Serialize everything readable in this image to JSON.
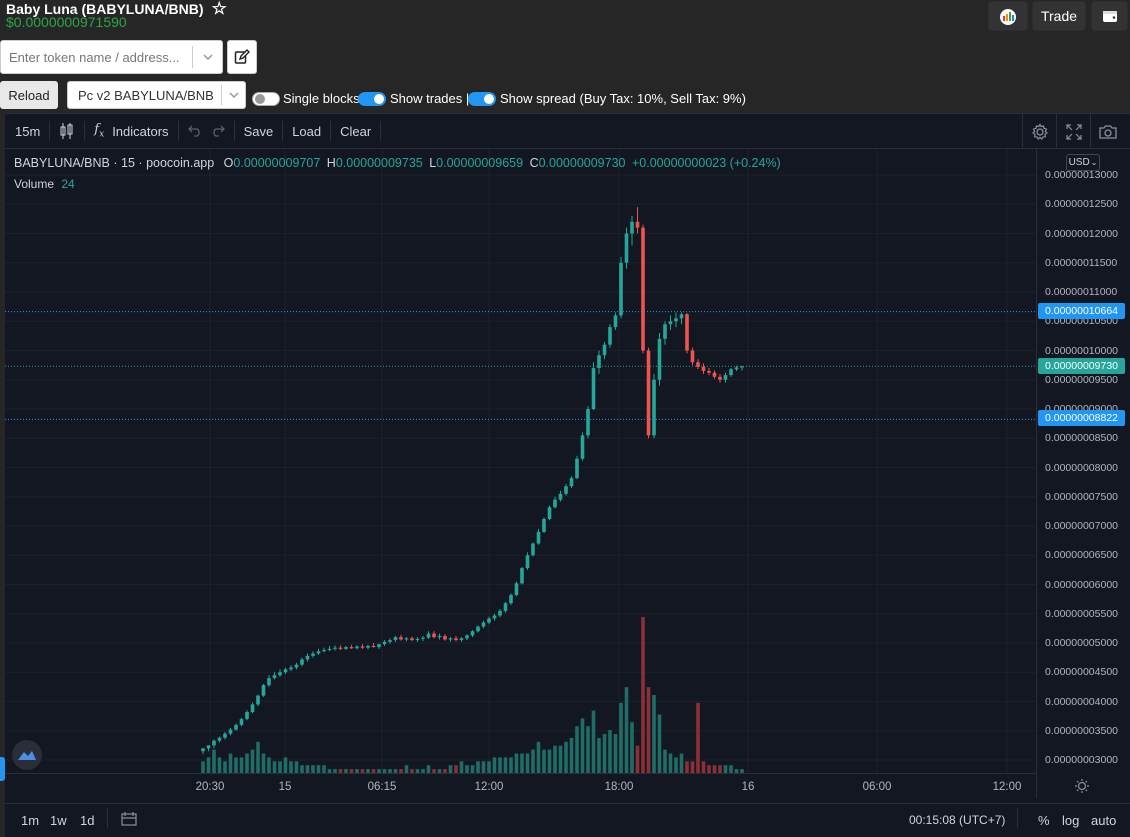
{
  "header": {
    "token_title": "Baby Luna (BABYLUNA/BNB)",
    "token_price": "$0.0000000971590",
    "trade_label": "Trade",
    "search_placeholder": "Enter token name / address..."
  },
  "controls": {
    "reload_label": "Reload",
    "pair_selected": "Pc v2 BABYLUNA/BNB",
    "single_blocks_label": "Single blocks",
    "single_blocks_on": false,
    "show_trades_label": "Show trades |",
    "show_trades_on": true,
    "show_spread_label": "Show spread (Buy Tax: 10%, Sell Tax: 9%)",
    "show_spread_on": true
  },
  "toolbar": {
    "interval": "15m",
    "indicators_label": "Indicators",
    "save_label": "Save",
    "load_label": "Load",
    "clear_label": "Clear"
  },
  "legend": {
    "symbol": "BABYLUNA/BNB",
    "sep1": "·",
    "resolution": "15",
    "sep2": "·",
    "source": "poocoin.app",
    "o_key": "O",
    "o_val": "0.00000009707",
    "h_key": "H",
    "h_val": "0.00000009735",
    "l_key": "L",
    "l_val": "0.00000009659",
    "c_key": "C",
    "c_val": "0.00000009730",
    "change": "+0.00000000023 (+0.24%)",
    "volume_label": "Volume",
    "volume_val": "24"
  },
  "axis": {
    "currency": "USD",
    "y_ticks": [
      "0.00000013000",
      "0.00000012500",
      "0.00000012000",
      "0.00000011500",
      "0.00000011000",
      "0.00000010500",
      "0.00000010000",
      "0.00000009500",
      "0.00000009000",
      "0.00000008500",
      "0.00000008000",
      "0.00000007500",
      "0.00000007000",
      "0.00000006500",
      "0.00000006000",
      "0.00000005500",
      "0.00000005000",
      "0.00000004500",
      "0.00000004000",
      "0.00000003500",
      "0.00000003000"
    ],
    "x_ticks": [
      "20:30",
      "15",
      "06:15",
      "12:00",
      "18:00",
      "16",
      "06:00",
      "12:00"
    ],
    "tag_upper": "0.00000010664",
    "tag_last": "0.00000009730",
    "tag_lower": "0.00000008822",
    "colors": {
      "up": "#26a69a",
      "down": "#ef5350",
      "upper_line": "#2196f3",
      "last_line": "#26a69a"
    }
  },
  "bottom": {
    "range_1m": "1m",
    "range_1w": "1w",
    "range_1d": "1d",
    "clock": "00:15:08 (UTC+7)",
    "pct": "%",
    "log": "log",
    "auto": "auto"
  },
  "chart_data": {
    "type": "candlestick",
    "title": "BABYLUNA/BNB · 15 · poocoin.app",
    "y_scale": "price USD",
    "ylim": [
      2.9e-08,
      1.31e-07
    ],
    "series": [
      {
        "name": "price",
        "values": [
          [
            3.15,
            3.2,
            3.1,
            3.2
          ],
          [
            3.2,
            3.25,
            3.15,
            3.25
          ],
          [
            3.25,
            3.35,
            3.2,
            3.33
          ],
          [
            3.33,
            3.4,
            3.3,
            3.38
          ],
          [
            3.38,
            3.48,
            3.35,
            3.45
          ],
          [
            3.45,
            3.55,
            3.42,
            3.52
          ],
          [
            3.52,
            3.62,
            3.5,
            3.6
          ],
          [
            3.6,
            3.72,
            3.58,
            3.7
          ],
          [
            3.7,
            3.85,
            3.68,
            3.82
          ],
          [
            3.82,
            3.98,
            3.8,
            3.95
          ],
          [
            3.95,
            4.12,
            3.92,
            4.1
          ],
          [
            4.1,
            4.3,
            4.08,
            4.28
          ],
          [
            4.28,
            4.45,
            4.25,
            4.4
          ],
          [
            4.4,
            4.5,
            4.38,
            4.45
          ],
          [
            4.45,
            4.55,
            4.42,
            4.5
          ],
          [
            4.5,
            4.58,
            4.47,
            4.55
          ],
          [
            4.55,
            4.62,
            4.52,
            4.58
          ],
          [
            4.58,
            4.66,
            4.55,
            4.63
          ],
          [
            4.63,
            4.75,
            4.6,
            4.72
          ],
          [
            4.72,
            4.82,
            4.68,
            4.78
          ],
          [
            4.78,
            4.86,
            4.75,
            4.82
          ],
          [
            4.82,
            4.9,
            4.8,
            4.86
          ],
          [
            4.86,
            4.92,
            4.84,
            4.88
          ],
          [
            4.88,
            4.95,
            4.86,
            4.9
          ],
          [
            4.9,
            4.96,
            4.87,
            4.92
          ],
          [
            4.92,
            4.96,
            4.88,
            4.9
          ],
          [
            4.9,
            4.95,
            4.88,
            4.93
          ],
          [
            4.93,
            4.97,
            4.9,
            4.91
          ],
          [
            4.91,
            4.96,
            4.89,
            4.94
          ],
          [
            4.94,
            4.98,
            4.9,
            4.92
          ],
          [
            4.92,
            4.97,
            4.89,
            4.95
          ],
          [
            4.95,
            5.0,
            4.92,
            4.93
          ],
          [
            4.93,
            4.99,
            4.9,
            4.98
          ],
          [
            4.98,
            5.05,
            4.95,
            5.02
          ],
          [
            5.02,
            5.08,
            4.99,
            5.05
          ],
          [
            5.05,
            5.12,
            5.02,
            5.1
          ],
          [
            5.1,
            5.14,
            5.04,
            5.06
          ],
          [
            5.06,
            5.1,
            5.03,
            5.08
          ],
          [
            5.08,
            5.11,
            5.03,
            5.05
          ],
          [
            5.05,
            5.1,
            5.02,
            5.07
          ],
          [
            5.07,
            5.12,
            5.03,
            5.09
          ],
          [
            5.09,
            5.2,
            5.07,
            5.16
          ],
          [
            5.16,
            5.2,
            5.08,
            5.1
          ],
          [
            5.1,
            5.16,
            5.06,
            5.12
          ],
          [
            5.12,
            5.15,
            5.04,
            5.06
          ],
          [
            5.06,
            5.1,
            5.02,
            5.08
          ],
          [
            5.08,
            5.12,
            5.03,
            5.05
          ],
          [
            5.05,
            5.1,
            5.02,
            5.08
          ],
          [
            5.08,
            5.15,
            5.05,
            5.13
          ],
          [
            5.13,
            5.22,
            5.1,
            5.2
          ],
          [
            5.2,
            5.3,
            5.18,
            5.28
          ],
          [
            5.28,
            5.38,
            5.25,
            5.35
          ],
          [
            5.35,
            5.45,
            5.32,
            5.42
          ],
          [
            5.42,
            5.5,
            5.38,
            5.47
          ],
          [
            5.47,
            5.58,
            5.44,
            5.55
          ],
          [
            5.55,
            5.7,
            5.52,
            5.68
          ],
          [
            5.68,
            5.85,
            5.65,
            5.82
          ],
          [
            5.82,
            6.05,
            5.8,
            6.02
          ],
          [
            6.02,
            6.3,
            6.0,
            6.28
          ],
          [
            6.28,
            6.55,
            6.25,
            6.5
          ],
          [
            6.5,
            6.72,
            6.48,
            6.7
          ],
          [
            6.7,
            6.95,
            6.68,
            6.9
          ],
          [
            6.9,
            7.15,
            6.88,
            7.12
          ],
          [
            7.12,
            7.35,
            7.1,
            7.32
          ],
          [
            7.32,
            7.5,
            7.3,
            7.45
          ],
          [
            7.45,
            7.6,
            7.42,
            7.55
          ],
          [
            7.55,
            7.72,
            7.52,
            7.68
          ],
          [
            7.68,
            7.85,
            7.65,
            7.82
          ],
          [
            7.82,
            8.2,
            7.8,
            8.15
          ],
          [
            8.15,
            8.6,
            8.12,
            8.55
          ],
          [
            8.55,
            9.05,
            8.5,
            9.0
          ],
          [
            9.0,
            9.8,
            8.98,
            9.7
          ],
          [
            9.7,
            10.0,
            9.6,
            9.92
          ],
          [
            9.92,
            10.15,
            9.85,
            10.1
          ],
          [
            10.1,
            10.45,
            10.05,
            10.4
          ],
          [
            10.4,
            10.65,
            10.35,
            10.6
          ],
          [
            10.6,
            11.6,
            10.55,
            11.5
          ],
          [
            11.5,
            12.1,
            11.4,
            12.0
          ],
          [
            12.0,
            12.3,
            11.8,
            12.2
          ],
          [
            12.2,
            12.45,
            12.0,
            12.1
          ],
          [
            12.1,
            12.15,
            9.95,
            10.0
          ],
          [
            10.0,
            10.05,
            8.5,
            8.55
          ],
          [
            8.55,
            9.6,
            8.5,
            9.5
          ],
          [
            9.5,
            10.3,
            9.4,
            10.2
          ],
          [
            10.2,
            10.5,
            10.1,
            10.45
          ],
          [
            10.45,
            10.6,
            10.35,
            10.5
          ],
          [
            10.5,
            10.65,
            10.4,
            10.55
          ],
          [
            10.55,
            10.65,
            10.45,
            10.62
          ],
          [
            10.62,
            10.64,
            9.95,
            10.0
          ],
          [
            10.0,
            10.05,
            9.75,
            9.8
          ],
          [
            9.8,
            9.85,
            9.68,
            9.72
          ],
          [
            9.72,
            9.78,
            9.6,
            9.65
          ],
          [
            9.65,
            9.7,
            9.58,
            9.62
          ],
          [
            9.62,
            9.66,
            9.52,
            9.55
          ],
          [
            9.55,
            9.6,
            9.45,
            9.5
          ],
          [
            9.5,
            9.62,
            9.45,
            9.58
          ],
          [
            9.58,
            9.7,
            9.55,
            9.68
          ],
          [
            9.68,
            9.74,
            9.65,
            9.71
          ],
          [
            9.71,
            9.735,
            9.659,
            9.73
          ]
        ]
      },
      {
        "name": "Volume",
        "values": [
          3,
          4,
          6,
          4,
          3,
          5,
          4,
          4,
          5,
          6,
          8,
          5,
          4,
          3,
          3,
          4,
          3,
          3,
          2,
          2,
          2,
          2,
          2,
          1,
          1,
          1,
          1,
          1,
          1,
          1,
          1,
          1,
          1,
          1,
          1,
          1,
          1,
          2,
          1,
          1,
          1,
          2,
          1,
          1,
          1,
          2,
          2,
          3,
          2,
          2,
          3,
          3,
          3,
          4,
          4,
          4,
          4,
          5,
          5,
          5,
          6,
          8,
          6,
          6,
          7,
          7,
          8,
          9,
          12,
          14,
          12,
          16,
          9,
          10,
          11,
          10,
          18,
          22,
          13,
          7,
          40,
          22,
          20,
          15,
          6,
          5,
          4,
          5,
          3,
          3,
          18,
          3,
          2,
          2,
          2,
          2,
          2,
          1,
          1
        ]
      }
    ]
  }
}
